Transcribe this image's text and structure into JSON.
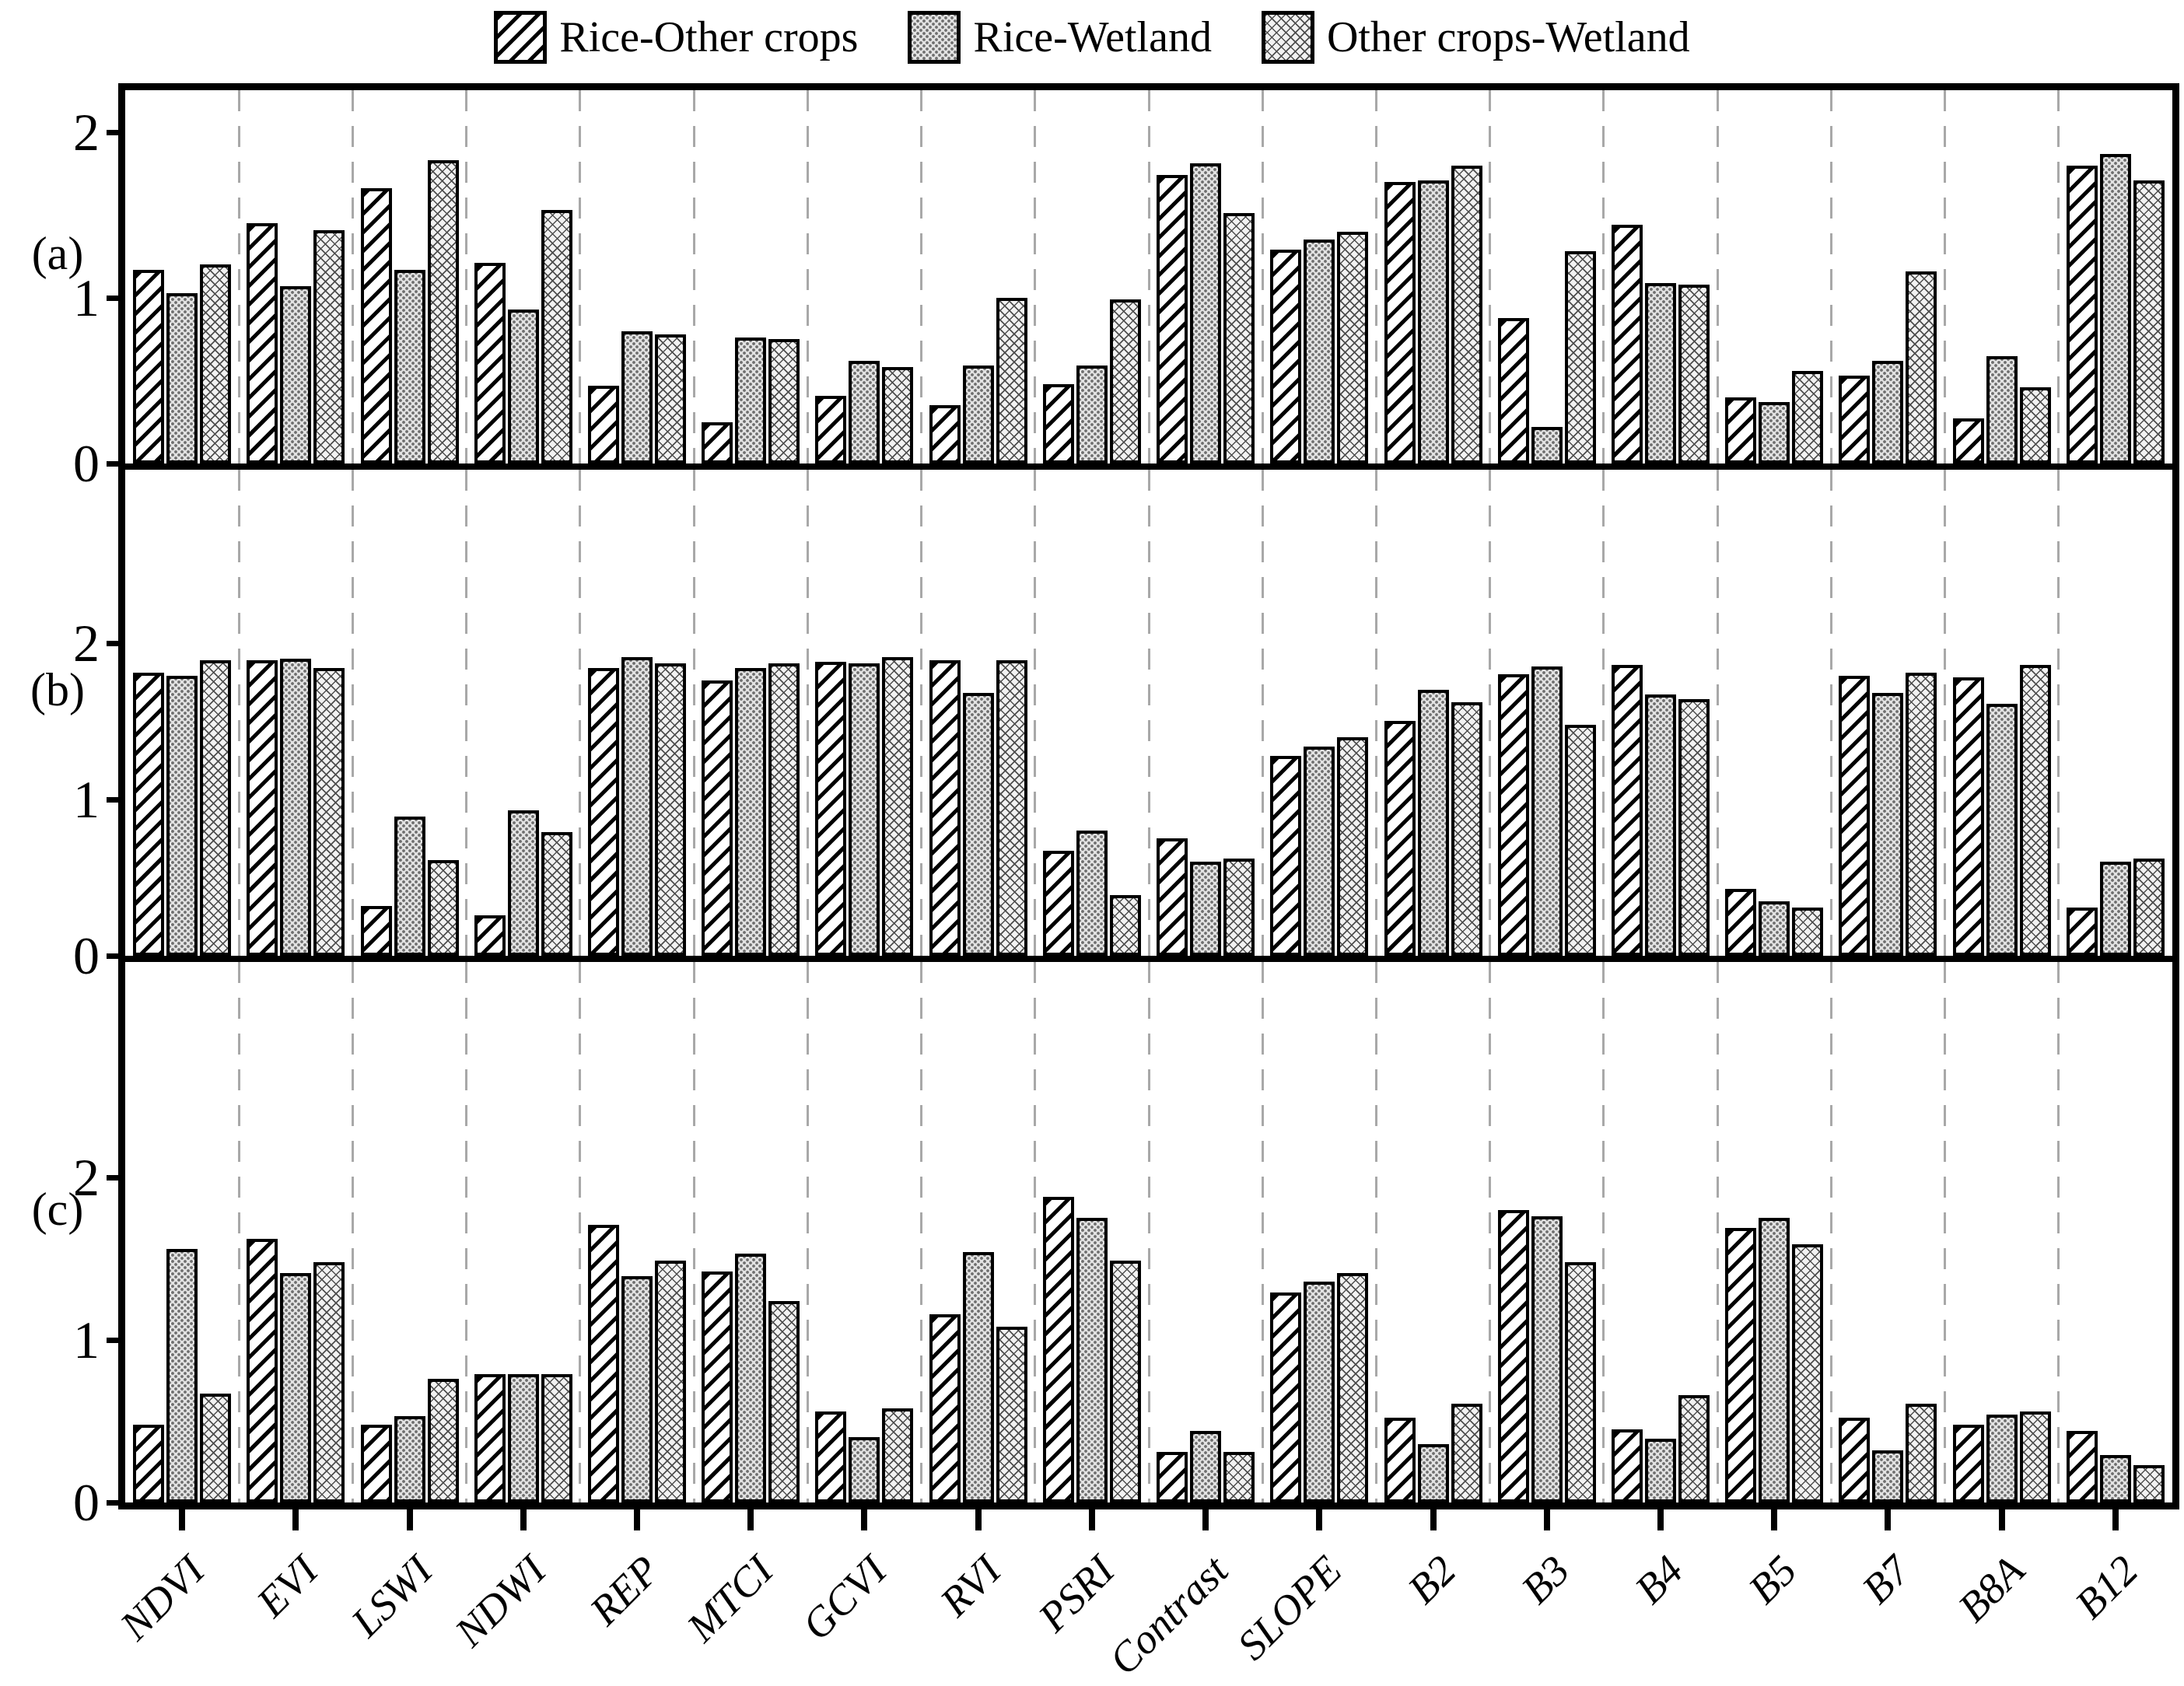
{
  "chart_data": {
    "type": "bar",
    "title": "",
    "xlabel": "",
    "ylabel": "",
    "grid": "vertical-dashed-between-groups",
    "legend_position": "top-center",
    "yticks": [
      0,
      1,
      2
    ],
    "categories": [
      "NDVI",
      "EVI",
      "LSWI",
      "NDWI",
      "REP",
      "MTCI",
      "GCVI",
      "RVI",
      "PSRI",
      "Contrast",
      "SLOPE",
      "B2",
      "B3",
      "B4",
      "B5",
      "B7",
      "B8A",
      "B12"
    ],
    "series": [
      {
        "key": "rice_other",
        "name": "Rice-Other crops",
        "pattern": "diagonal-hatch"
      },
      {
        "key": "rice_wetland",
        "name": "Rice-Wetland",
        "pattern": "gray-stipple-dots"
      },
      {
        "key": "other_wetland",
        "name": "Other crops-Wetland",
        "pattern": "fine-crosshatch"
      }
    ],
    "panels": [
      {
        "id": "a",
        "label": "(a)",
        "ylim": [
          0,
          2.25
        ],
        "series": {
          "rice_other": [
            1.17,
            1.45,
            1.66,
            1.21,
            0.47,
            0.25,
            0.41,
            0.35,
            0.48,
            1.74,
            1.29,
            1.7,
            0.88,
            1.44,
            0.4,
            0.53,
            0.27,
            1.8
          ],
          "rice_wetland": [
            1.03,
            1.07,
            1.17,
            0.93,
            0.8,
            0.76,
            0.62,
            0.59,
            0.59,
            1.81,
            1.35,
            1.71,
            0.22,
            1.09,
            0.37,
            0.62,
            0.65,
            1.87
          ],
          "other_wetland": [
            1.2,
            1.41,
            1.83,
            1.53,
            0.78,
            0.75,
            0.58,
            1.0,
            0.99,
            1.51,
            1.4,
            1.8,
            1.28,
            1.08,
            0.56,
            1.16,
            0.46,
            1.71
          ]
        }
      },
      {
        "id": "b",
        "label": "(b)",
        "ylim": [
          0,
          3.1
        ],
        "series": {
          "rice_other": [
            1.81,
            1.89,
            0.32,
            0.26,
            1.84,
            1.76,
            1.88,
            1.89,
            0.67,
            0.75,
            1.28,
            1.5,
            1.8,
            1.86,
            0.43,
            1.79,
            1.78,
            0.31
          ],
          "rice_wetland": [
            1.79,
            1.9,
            0.89,
            0.93,
            1.91,
            1.84,
            1.87,
            1.68,
            0.8,
            0.6,
            1.34,
            1.7,
            1.85,
            1.67,
            0.35,
            1.68,
            1.61,
            0.6
          ],
          "other_wetland": [
            1.89,
            1.84,
            0.61,
            0.79,
            1.87,
            1.87,
            1.91,
            1.89,
            0.39,
            0.62,
            1.4,
            1.62,
            1.48,
            1.64,
            0.31,
            1.81,
            1.86,
            0.62
          ]
        }
      },
      {
        "id": "c",
        "label": "(c)",
        "ylim": [
          0,
          3.3
        ],
        "series": {
          "rice_other": [
            0.48,
            1.62,
            0.48,
            0.79,
            1.71,
            1.42,
            0.56,
            1.16,
            1.88,
            0.31,
            1.29,
            0.52,
            1.8,
            0.45,
            1.69,
            0.52,
            0.48,
            0.44
          ],
          "rice_wetland": [
            1.56,
            1.41,
            0.53,
            0.79,
            1.39,
            1.53,
            0.4,
            1.54,
            1.75,
            0.44,
            1.36,
            0.36,
            1.76,
            0.39,
            1.75,
            0.32,
            0.54,
            0.29
          ],
          "other_wetland": [
            0.67,
            1.48,
            0.76,
            0.79,
            1.49,
            1.24,
            0.58,
            1.08,
            1.49,
            0.31,
            1.41,
            0.61,
            1.48,
            0.66,
            1.59,
            0.61,
            0.56,
            0.23
          ]
        }
      }
    ]
  }
}
